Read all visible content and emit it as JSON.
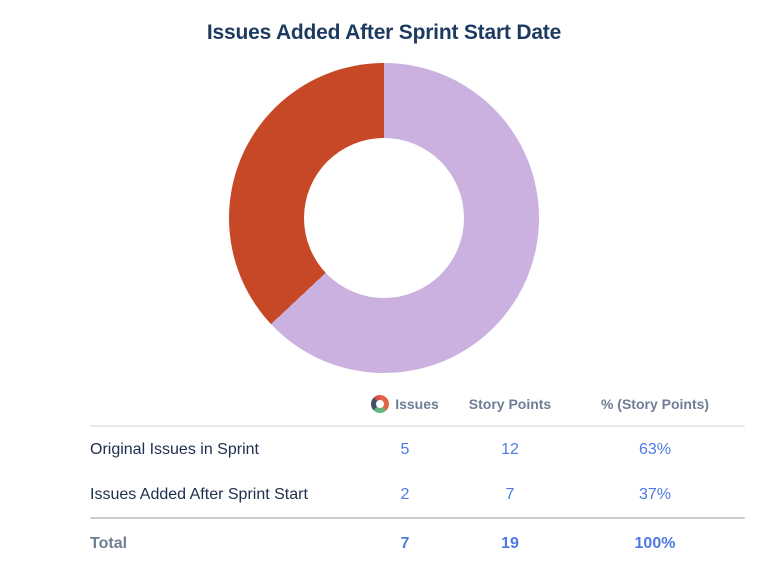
{
  "title": "Issues Added After Sprint Start Date",
  "colors": {
    "segment_original": "#cbb1df",
    "segment_added": "#c74827",
    "value_link_blue": "#4e7ae4",
    "heading_navy": "#1d3a5f",
    "muted_gray": "#6e7e95"
  },
  "chart_data": {
    "type": "pie",
    "variant": "donut",
    "title": "Issues Added After Sprint Start Date",
    "start_angle_deg": 0,
    "direction": "clockwise",
    "value_basis": "% (Story Points)",
    "series": [
      {
        "name": "Original Issues in Sprint",
        "issues": 5,
        "story_points": 12,
        "pct": 63,
        "color": "#cbb1df"
      },
      {
        "name": "Issues Added After Sprint Start",
        "issues": 2,
        "story_points": 7,
        "pct": 37,
        "color": "#c74827"
      }
    ],
    "totals": {
      "issues": 7,
      "story_points": 19,
      "pct": 100
    },
    "legend_position": "table-below"
  },
  "table": {
    "headers": {
      "issues": "Issues",
      "story_points": "Story Points",
      "pct": "% (Story Points)"
    },
    "rows": [
      {
        "label": "Original Issues in Sprint",
        "issues": "5",
        "story_points": "12",
        "pct": "63%",
        "swatch_color": "#cbb1df"
      },
      {
        "label": "Issues Added After Sprint Start",
        "issues": "2",
        "story_points": "7",
        "pct": "37%",
        "swatch_color": "#c74827"
      }
    ],
    "total": {
      "label": "Total",
      "issues": "7",
      "story_points": "19",
      "pct": "100%"
    }
  }
}
